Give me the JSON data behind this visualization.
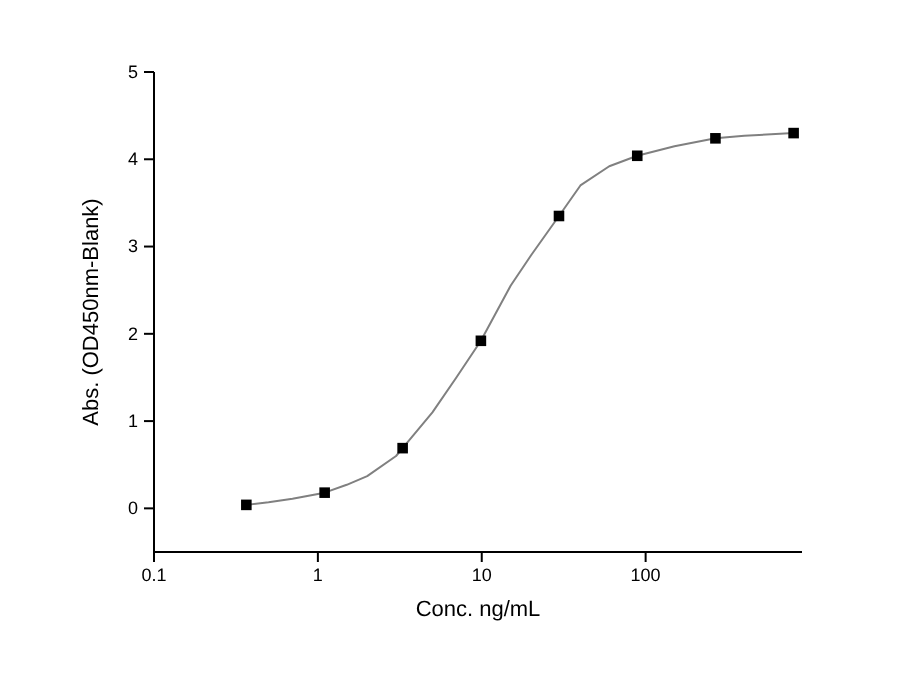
{
  "chart_data": {
    "type": "scatter",
    "xlabel": "Conc. ng/mL",
    "ylabel": "Abs. (OD450nm-Blank)",
    "log": "x",
    "xlim": [
      0.1,
      900
    ],
    "xticks": [
      0.1,
      1,
      10,
      100
    ],
    "ylim": [
      -0.5,
      5
    ],
    "yticks": [
      0,
      1,
      2,
      3,
      4,
      5
    ],
    "grid": false,
    "series": [
      {
        "type": "line",
        "color": "#808080",
        "marker": "none",
        "line_style": "solid",
        "x": [
          0.366,
          0.5,
          0.7,
          1.1,
          1.5,
          2,
          3,
          3.29,
          5,
          7,
          9.88,
          15,
          20,
          29.6,
          40,
          60,
          88.9,
          150,
          266.7,
          400,
          800
        ],
        "values": [
          0.04,
          0.07,
          0.11,
          0.18,
          0.27,
          0.37,
          0.6,
          0.69,
          1.1,
          1.5,
          1.92,
          2.55,
          2.9,
          3.35,
          3.7,
          3.92,
          4.04,
          4.15,
          4.24,
          4.27,
          4.3
        ]
      },
      {
        "color": "#000000",
        "marker": "square",
        "x": [
          0.366,
          1.1,
          3.29,
          9.88,
          29.6,
          88.9,
          266.7,
          800
        ],
        "values": [
          0.04,
          0.18,
          0.69,
          1.92,
          3.35,
          4.04,
          4.24,
          4.3
        ]
      }
    ]
  }
}
